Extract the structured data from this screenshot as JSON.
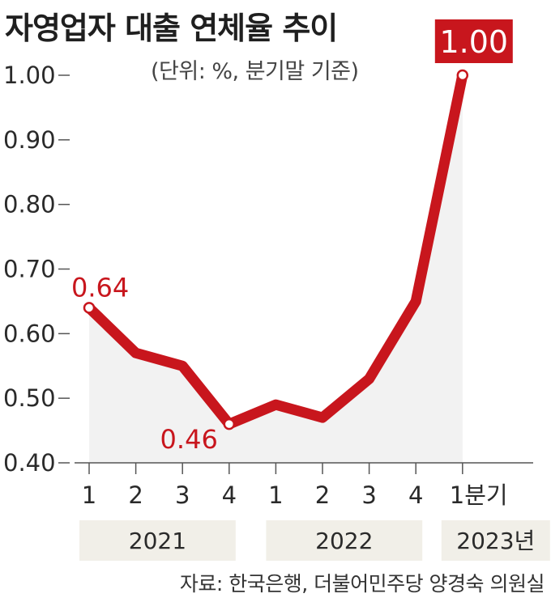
{
  "title": "자영업자 대출 연체율 추이",
  "subtitle": "(단위: %, 분기말 기준)",
  "source": "자료: 한국은행, 더불어민주당 양경숙 의원실",
  "colors": {
    "line": "#c8161d",
    "area": "#f2f2f2",
    "group_box": "#f1efe8",
    "axis": "#555555",
    "highlight_box": "#c8161d"
  },
  "chart_data": {
    "type": "line",
    "categories": [
      "1",
      "2",
      "3",
      "4",
      "1",
      "2",
      "3",
      "4",
      "1분기"
    ],
    "groups": [
      {
        "label": "2021",
        "start": 0,
        "end": 3
      },
      {
        "label": "2022",
        "start": 4,
        "end": 7
      },
      {
        "label": "2023년",
        "start": 8,
        "end": 8
      }
    ],
    "series": [
      {
        "values": [
          0.64,
          0.57,
          0.55,
          0.46,
          0.49,
          0.47,
          0.53,
          0.65,
          1.0
        ]
      }
    ],
    "yticks": [
      "0.40",
      "0.50",
      "0.60",
      "0.70",
      "0.80",
      "0.90",
      "1.00"
    ],
    "ylim": [
      0.4,
      1.0
    ],
    "annotations": [
      {
        "index": 0,
        "text": "0.64"
      },
      {
        "index": 3,
        "text": "0.46"
      },
      {
        "index": 8,
        "text": "1.00",
        "highlight": true
      }
    ]
  }
}
